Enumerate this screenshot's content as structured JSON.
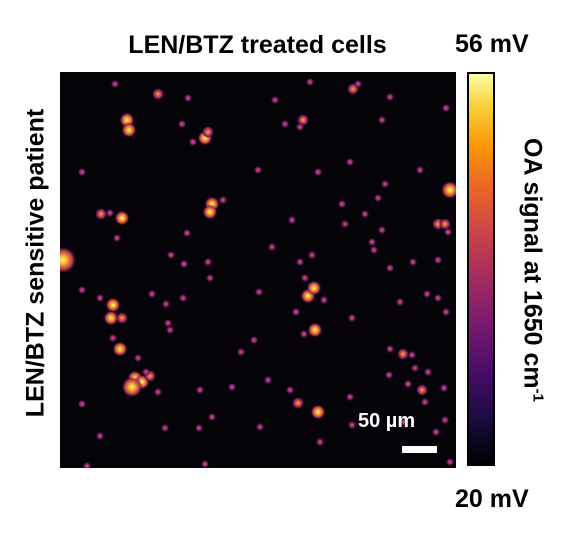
{
  "figure": {
    "title": "LEN/BTZ treated cells",
    "row_label": "LEN/BTZ sensitive patient",
    "scale_bar_label": "50 µm",
    "colorbar": {
      "max_label": "56 mV",
      "min_label": "20 mV",
      "label_main": "OA signal at 1650 cm",
      "label_sup": "-1",
      "colormap": "inferno"
    },
    "image_description": "optoacoustic micrograph: sparse bright droplets on black background",
    "colors": {
      "background": "#050308",
      "bright": "#fcffa4",
      "mid": "#e65d2f",
      "dim": "#8a2267"
    }
  }
}
